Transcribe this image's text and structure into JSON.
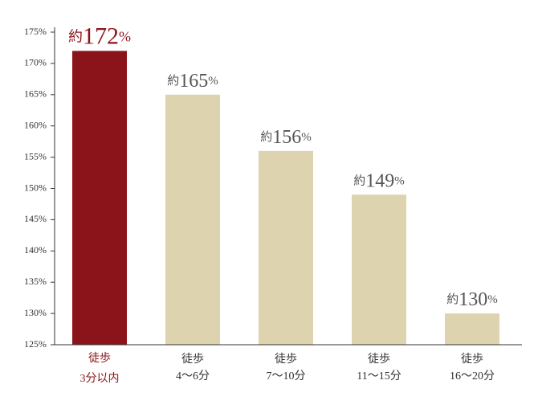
{
  "chart_data": {
    "type": "bar",
    "categories": [
      [
        "徒歩",
        "3分以内"
      ],
      [
        "徒歩",
        "4〜6分"
      ],
      [
        "徒歩",
        "7〜10分"
      ],
      [
        "徒歩",
        "11〜15分"
      ],
      [
        "徒歩",
        "16〜20分"
      ]
    ],
    "values": [
      172,
      165,
      156,
      149,
      130
    ],
    "value_labels": [
      "約172%",
      "約165%",
      "約156%",
      "約149%",
      "約130%"
    ],
    "colors": [
      "#8b141b",
      "#ddd3ae",
      "#ddd3ae",
      "#ddd3ae",
      "#ddd3ae"
    ],
    "label_colors": [
      "#8b141b",
      "#555555",
      "#555555",
      "#555555",
      "#555555"
    ],
    "ylim": [
      125,
      175
    ],
    "yticks": [
      {
        "value": 125,
        "label": "125%"
      },
      {
        "value": 130,
        "label": "130%"
      },
      {
        "value": 135,
        "label": "135%"
      },
      {
        "value": 140,
        "label": "140%"
      },
      {
        "value": 145,
        "label": "145%"
      },
      {
        "value": 150,
        "label": "150%"
      },
      {
        "value": 155,
        "label": "155%"
      },
      {
        "value": 160,
        "label": "160%"
      },
      {
        "value": 165,
        "label": "165%"
      },
      {
        "value": 170,
        "label": "170%"
      },
      {
        "value": 175,
        "label": "175%"
      }
    ]
  }
}
